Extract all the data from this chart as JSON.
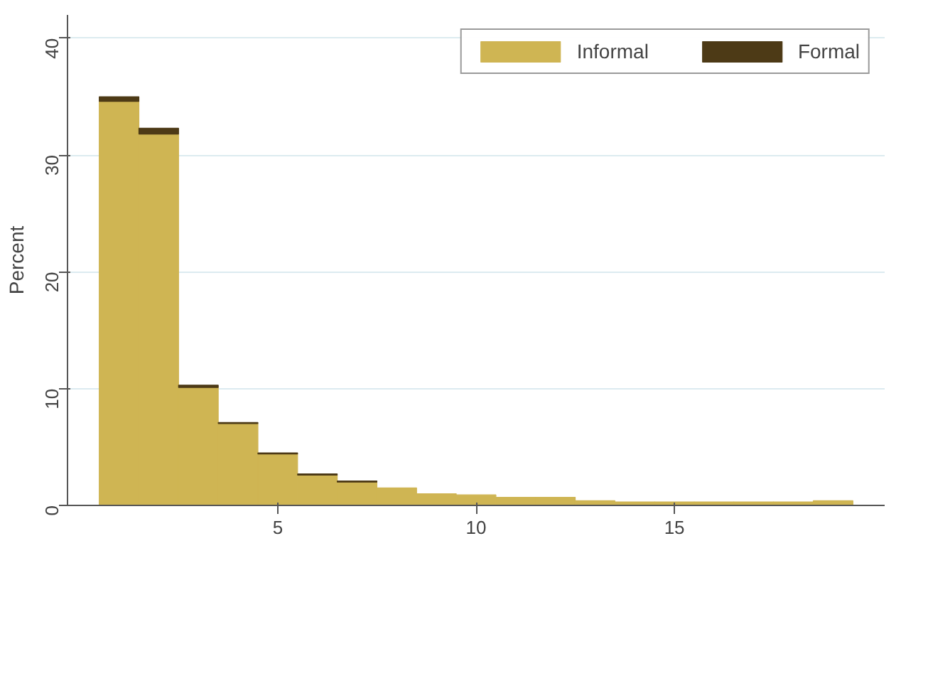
{
  "chart_data": {
    "type": "bar",
    "stacked": true,
    "ylabel": "Percent",
    "x": [
      1,
      2,
      3,
      4,
      5,
      6,
      7,
      8,
      9,
      10,
      11,
      12,
      13,
      14,
      15,
      16,
      17,
      18,
      19
    ],
    "series": [
      {
        "name": "Informal",
        "color": "#cfb553",
        "values": [
          34.6,
          31.8,
          10.1,
          7.0,
          4.4,
          2.6,
          2.0,
          1.5,
          1.0,
          0.9,
          0.7,
          0.7,
          0.4,
          0.3,
          0.3,
          0.3,
          0.3,
          0.3,
          0.4
        ]
      },
      {
        "name": "Formal",
        "color": "#4d3a16",
        "values": [
          0.4,
          0.5,
          0.2,
          0.1,
          0.1,
          0.1,
          0.1,
          null,
          null,
          null,
          null,
          null,
          null,
          null,
          null,
          null,
          null,
          null,
          null
        ]
      }
    ],
    "xlim": [
      -0.3,
      20.3
    ],
    "xticks": [
      5,
      10,
      15
    ],
    "ylim": [
      0,
      42
    ],
    "yticks": [
      0,
      10,
      20,
      30,
      40
    ],
    "grid": "y",
    "legend": "top right"
  }
}
